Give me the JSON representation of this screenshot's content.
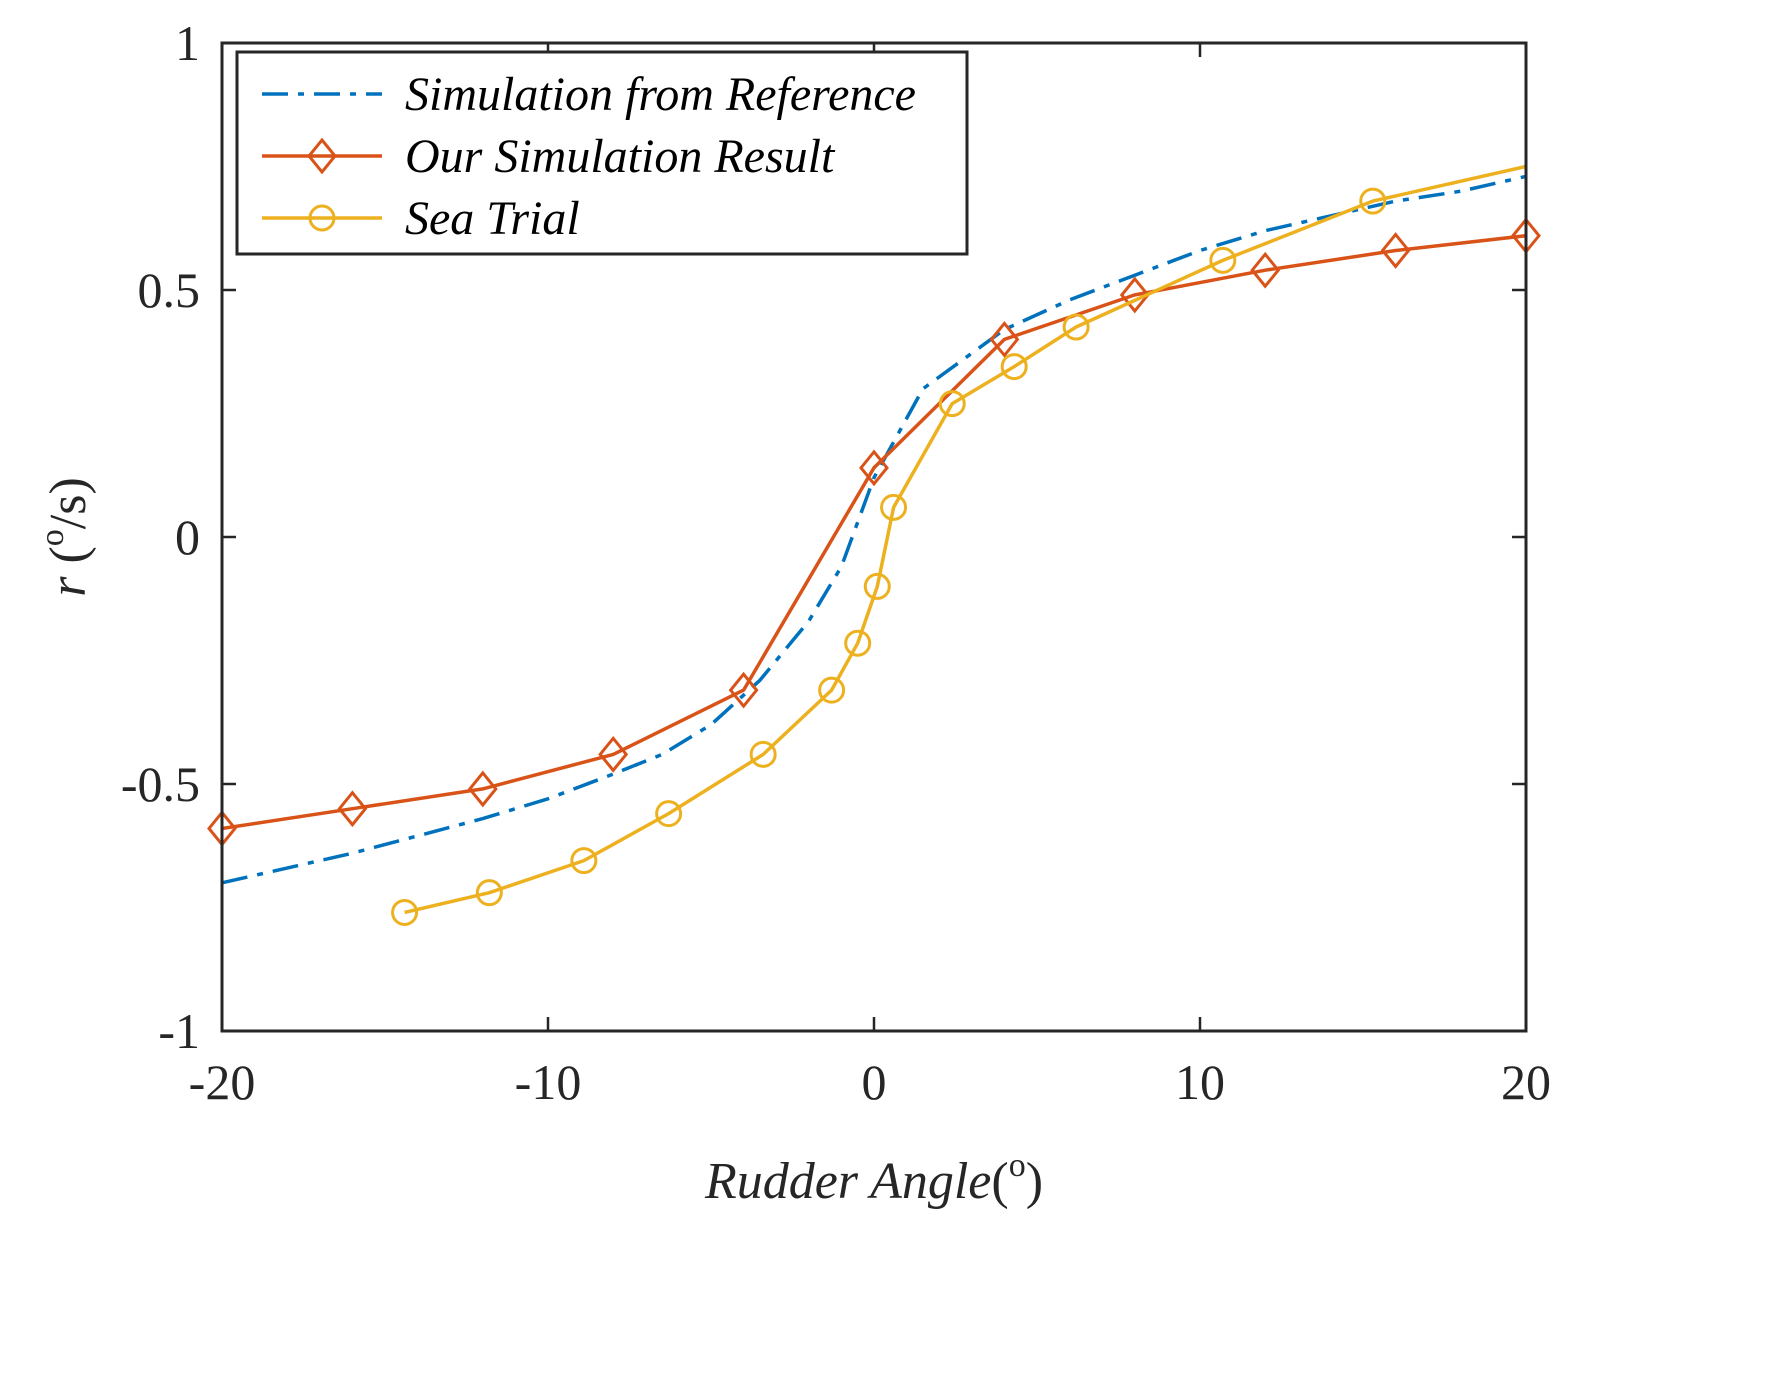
{
  "chart_data": {
    "type": "line",
    "xlabel": {
      "name": "Rudder Angle",
      "unit_open": "(",
      "unit_sup": "o",
      "unit_close": ")"
    },
    "ylabel": {
      "name": "r",
      "unit_open": " (",
      "unit_sup": "o",
      "unit_close": "/s)"
    },
    "xlim": [
      -20,
      20
    ],
    "ylim": [
      -1,
      1
    ],
    "xticks": [
      -20,
      -10,
      0,
      10,
      20
    ],
    "xtick_labels": [
      "-20",
      "-10",
      "0",
      "10",
      "20"
    ],
    "yticks": [
      -1,
      -0.5,
      0,
      0.5,
      1
    ],
    "ytick_labels": [
      "-1",
      "-0.5",
      "0",
      "0.5",
      "1"
    ],
    "grid": false,
    "legend_position": "top-left",
    "series": [
      {
        "name": "Simulation from Reference",
        "color": "#0072BD",
        "style": "dashdot",
        "marker": "none",
        "x": [
          -20,
          -16,
          -12,
          -10,
          -8,
          -6.5,
          -5,
          -3.5,
          -2,
          -1,
          0,
          1.5,
          4,
          6,
          8,
          10,
          12,
          14,
          16,
          18,
          20
        ],
        "y": [
          -0.7,
          -0.64,
          -0.57,
          -0.53,
          -0.48,
          -0.44,
          -0.38,
          -0.29,
          -0.17,
          -0.06,
          0.12,
          0.3,
          0.42,
          0.48,
          0.53,
          0.58,
          0.62,
          0.65,
          0.68,
          0.7,
          0.73
        ]
      },
      {
        "name": "Our Simulation Result",
        "color": "#D95319",
        "style": "solid",
        "marker": "diamond",
        "x": [
          -20,
          -16,
          -12,
          -8,
          -4,
          0,
          4,
          8,
          12,
          16,
          20
        ],
        "y": [
          -0.59,
          -0.55,
          -0.51,
          -0.44,
          -0.31,
          0.14,
          0.4,
          0.49,
          0.54,
          0.58,
          0.61
        ]
      },
      {
        "name": "Sea Trial",
        "color": "#EDB120",
        "style": "solid",
        "marker": "circle",
        "x": [
          -14.4,
          -11.8,
          -8.9,
          -6.3,
          -3.4,
          -1.3,
          -0.5,
          0.1,
          0.6,
          2.4,
          4.3,
          6.2,
          10.7,
          15.3,
          20
        ],
        "y": [
          -0.76,
          -0.72,
          -0.655,
          -0.56,
          -0.44,
          -0.31,
          -0.215,
          -0.1,
          0.06,
          0.27,
          0.345,
          0.425,
          0.56,
          0.68,
          0.75
        ],
        "marker_x": [
          -14.4,
          -11.8,
          -8.9,
          -6.3,
          -3.4,
          -1.3,
          -0.5,
          0.1,
          0.6,
          2.4,
          4.3,
          6.2,
          10.7,
          15.3
        ],
        "marker_y": [
          -0.76,
          -0.72,
          -0.655,
          -0.56,
          -0.44,
          -0.31,
          -0.215,
          -0.1,
          0.06,
          0.27,
          0.345,
          0.425,
          0.56,
          0.68
        ]
      }
    ]
  }
}
